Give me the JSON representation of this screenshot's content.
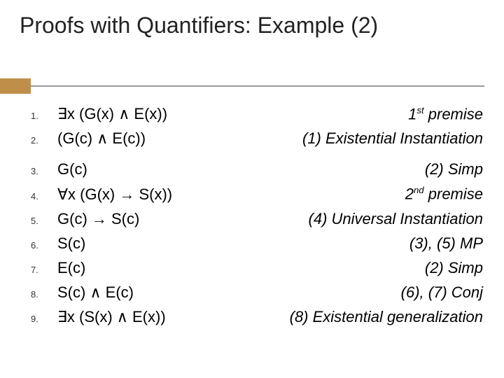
{
  "title": "Proofs with Quantifiers: Example (2)",
  "colors": {
    "accent": "#bf8f4a",
    "divider": "#999999",
    "text": "#000000",
    "background": "#ffffff"
  },
  "fonts": {
    "title_size": 32,
    "body_size": 22,
    "num_size": 13
  },
  "rows": [
    {
      "n": "1.",
      "formula": "∃x (G(x) ∧ E(x))",
      "just": "1ˢᵗ premise",
      "gap": false
    },
    {
      "n": "2.",
      "formula": "(G(c) ∧ E(c))",
      "just": "(1) Existential Instantiation",
      "gap": false
    },
    {
      "n": "3.",
      "formula": "G(c)",
      "just": "(2) Simp",
      "gap": true
    },
    {
      "n": "4.",
      "formula": "∀x (G(x) → S(x))",
      "just": "2ⁿᵈ premise",
      "gap": false
    },
    {
      "n": "5.",
      "formula": "G(c) → S(c)",
      "just": "(4) Universal Instantiation",
      "gap": false
    },
    {
      "n": "6.",
      "formula": "S(c)",
      "just": "(3), (5) MP",
      "gap": false
    },
    {
      "n": "7.",
      "formula": "E(c)",
      "just": "(2) Simp",
      "gap": false
    },
    {
      "n": "8.",
      "formula": "S(c) ∧ E(c)",
      "just": "(6), (7) Conj",
      "gap": false
    },
    {
      "n": "9.",
      "formula": "∃x (S(x) ∧ E(x))",
      "just": "(8) Existential generalization",
      "gap": false
    }
  ]
}
